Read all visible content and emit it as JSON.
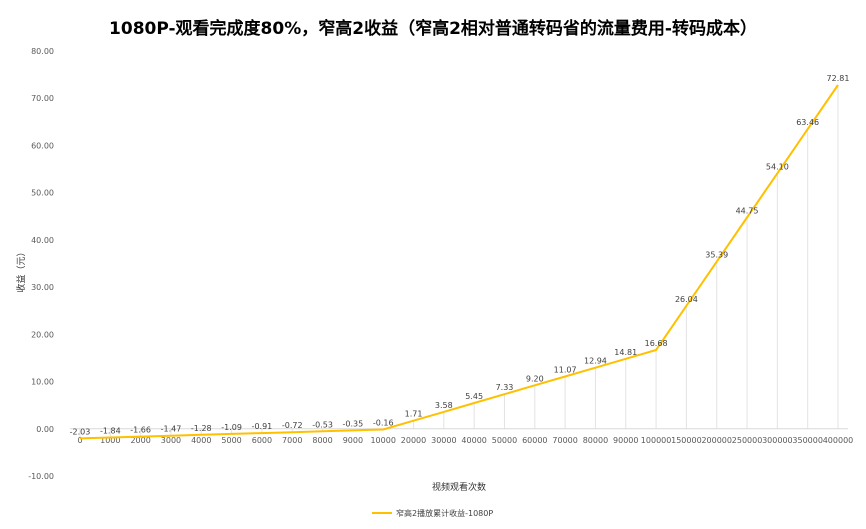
{
  "chart_data": {
    "type": "line",
    "title": "1080P-观看完成度80%，窄高2收益（窄高2相对普通转码省的流量费用-转码成本）",
    "xlabel": "视频观看次数",
    "ylabel": "收益（元）",
    "ylim": [
      -10,
      80
    ],
    "yticks": [
      "-10.00",
      "0.00",
      "10.00",
      "20.00",
      "30.00",
      "40.00",
      "50.00",
      "60.00",
      "70.00",
      "80.00"
    ],
    "grid": "vertical drop lines at each category",
    "legend_position": "bottom",
    "categories": [
      "0",
      "1000",
      "2000",
      "3000",
      "4000",
      "5000",
      "6000",
      "7000",
      "8000",
      "9000",
      "10000",
      "20000",
      "30000",
      "40000",
      "50000",
      "60000",
      "70000",
      "80000",
      "90000",
      "100000",
      "150000",
      "200000",
      "250000",
      "300000",
      "350000",
      "400000"
    ],
    "series": [
      {
        "name": "窄高2播放累计收益-1080P",
        "color": "#FFC000",
        "values": [
          -2.03,
          -1.84,
          -1.66,
          -1.47,
          -1.28,
          -1.09,
          -0.91,
          -0.72,
          -0.53,
          -0.35,
          -0.16,
          1.71,
          3.58,
          5.45,
          7.33,
          9.2,
          11.07,
          12.94,
          14.81,
          16.68,
          26.04,
          35.39,
          44.75,
          54.1,
          63.46,
          72.81
        ],
        "labels": [
          "-2.03",
          "-1.84",
          "-1.66",
          "-1.47",
          "-1.28",
          "-1.09",
          "-0.91",
          "-0.72",
          "-0.53",
          "-0.35",
          "-0.16",
          "1.71",
          "3.58",
          "5.45",
          "7.33",
          "9.20",
          "11.07",
          "12.94",
          "14.81",
          "16.68",
          "26.04",
          "35.39",
          "44.75",
          "54.10",
          "63.46",
          "72.81"
        ]
      }
    ]
  }
}
